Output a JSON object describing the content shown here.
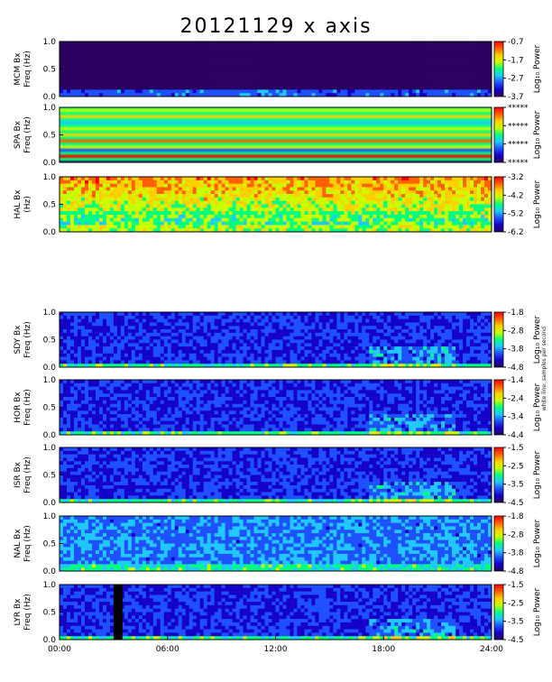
{
  "title": "20121129 x axis",
  "side_note": "white line: samples per second",
  "colors": {
    "background": "#ffffff",
    "colormap": [
      "#2a0060",
      "#1400c8",
      "#1e50ff",
      "#20c8ff",
      "#00ff80",
      "#c8ff00",
      "#ffd000",
      "#ff6000",
      "#ff0000"
    ]
  },
  "chart_data": [
    {
      "type": "heatmap",
      "station": "MCM",
      "ylabel_station": "MCM Bx",
      "ylabel_unit": "Freq (Hz)",
      "colorbar_title": "Log₁₀ Power",
      "colorbar_ticks": [
        "-0.7",
        "-1.7",
        "-2.7",
        "-3.7"
      ],
      "zlim": [
        -3.7,
        -0.7
      ],
      "ylim": [
        0,
        1.0
      ],
      "yticks": [
        "1.0",
        "0.5",
        "0.0"
      ],
      "pattern": "mcm",
      "notes": "mostly low power; vertical lines near 02:10, 11:30, 20:15"
    },
    {
      "type": "heatmap",
      "station": "SPA",
      "ylabel_station": "SPA Bx",
      "ylabel_unit": "Freq (Hz)",
      "colorbar_title": "Log₁₀ Power",
      "colorbar_ticks": [
        "*****",
        "*****",
        "*****",
        "*****"
      ],
      "ylim": [
        0,
        1.0
      ],
      "yticks": [
        "1.0",
        "0.5",
        "0.0"
      ],
      "pattern": "spa",
      "notes": "horizontal stripes across the whole day"
    },
    {
      "type": "heatmap",
      "station": "HAL",
      "ylabel_station": "HAL Bx",
      "ylabel_unit": "(Hz)",
      "colorbar_title": "Log₁₀ Power",
      "colorbar_ticks": [
        "-3.2",
        "-4.2",
        "-5.2",
        "-6.2"
      ],
      "zlim": [
        -6.2,
        -3.2
      ],
      "ylim": [
        0,
        1.0
      ],
      "yticks": [
        "1.0",
        "0.5",
        "0.0"
      ],
      "pattern": "hal",
      "notes": "high power at upper frequencies"
    },
    {
      "type": "heatmap",
      "station": "SDY",
      "ylabel_station": "SDY Bx",
      "ylabel_unit": "Freq (Hz)",
      "colorbar_title": "Log₁₀ Power",
      "colorbar_ticks": [
        "-1.8",
        "-2.8",
        "-3.8",
        "-4.8"
      ],
      "zlim": [
        -4.8,
        -1.8
      ],
      "ylim": [
        0,
        1.0
      ],
      "yticks": [
        "1.0",
        "0.5",
        "0.0"
      ],
      "pattern": "low",
      "notes": "vertical line near 12:40 and 15:20"
    },
    {
      "type": "heatmap",
      "station": "HOR",
      "ylabel_station": "HOR Bx",
      "ylabel_unit": "Freq (Hz)",
      "colorbar_title": "Log₁₀ Power",
      "colorbar_ticks": [
        "-1.4",
        "-2.4",
        "-3.4",
        "-4.4"
      ],
      "zlim": [
        -4.4,
        -1.4
      ],
      "ylim": [
        0,
        1.0
      ],
      "yticks": [
        "1.0",
        "0.5",
        "0.0"
      ],
      "pattern": "low",
      "notes": "activity 18:00-22:00"
    },
    {
      "type": "heatmap",
      "station": "ISR",
      "ylabel_station": "ISR Bx",
      "ylabel_unit": "Freq (Hz)",
      "colorbar_title": "Log₁₀ Power",
      "colorbar_ticks": [
        "-1.5",
        "-2.5",
        "-3.5",
        "-4.5"
      ],
      "zlim": [
        -4.5,
        -1.5
      ],
      "ylim": [
        0,
        1.0
      ],
      "yticks": [
        "1.0",
        "0.5",
        "0.0"
      ],
      "pattern": "low",
      "notes": "vertical line near 07:10"
    },
    {
      "type": "heatmap",
      "station": "NAL",
      "ylabel_station": "NAL Bx",
      "ylabel_unit": "Freq (Hz)",
      "colorbar_title": "Log₁₀ Power",
      "colorbar_ticks": [
        "-1.8",
        "-2.8",
        "-3.8",
        "-4.8"
      ],
      "zlim": [
        -4.8,
        -1.8
      ],
      "ylim": [
        0,
        1.0
      ],
      "yticks": [
        "1.0",
        "0.5",
        "0.0"
      ],
      "pattern": "mid",
      "notes": "broader power, line near 20:10"
    },
    {
      "type": "heatmap",
      "station": "LYR",
      "ylabel_station": "LYR Bx",
      "ylabel_unit": "Freq (Hz)",
      "colorbar_title": "Log₁₀ Power",
      "colorbar_ticks": [
        "-1.5",
        "-2.5",
        "-3.5",
        "-4.5"
      ],
      "zlim": [
        -4.5,
        -1.5
      ],
      "ylim": [
        0,
        1.0
      ],
      "yticks": [
        "1.0",
        "0.5",
        "0.0"
      ],
      "pattern": "low",
      "data_gap": [
        "03:00",
        "03:30"
      ],
      "notes": "data gap around 03:00-03:30"
    }
  ],
  "x_axis": {
    "ticks": [
      "00:00",
      "06:00",
      "12:00",
      "18:00",
      "24:00"
    ],
    "xlim": [
      "00:00",
      "24:00"
    ]
  }
}
